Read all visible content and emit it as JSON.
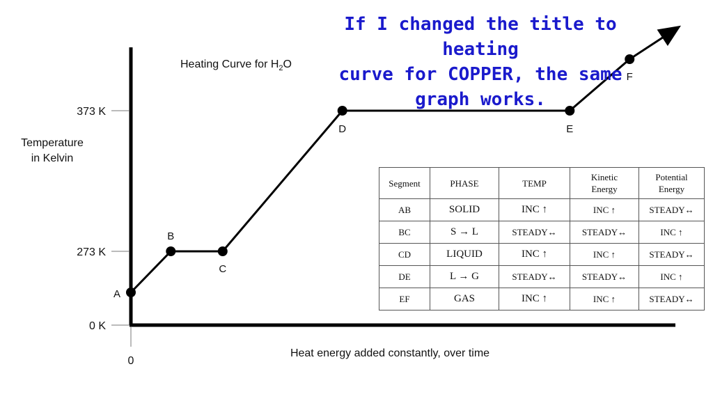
{
  "callout": {
    "lines": [
      "If I changed the title to heating",
      "curve for COPPER, the same",
      "graph works."
    ]
  },
  "chart_data": {
    "type": "line",
    "title_main": "Heating Curve for H",
    "title_sub": "2",
    "title_tail": "O",
    "ylabel_lines": [
      "Temperature",
      "in Kelvin"
    ],
    "xlabel": "Heat energy added constantly, over time",
    "y_ticks": [
      {
        "label": "373 K",
        "value": 373
      },
      {
        "label": "273 K",
        "value": 273
      },
      {
        "label": "0 K",
        "value": 0
      }
    ],
    "x_ticks": [
      {
        "label": "0",
        "value": 0
      }
    ],
    "points": [
      {
        "label": "A",
        "x": 0,
        "y": 190
      },
      {
        "label": "B",
        "x": 1,
        "y": 273
      },
      {
        "label": "C",
        "x": 2.3,
        "y": 273
      },
      {
        "label": "D",
        "x": 5.3,
        "y": 373
      },
      {
        "label": "E",
        "x": 11,
        "y": 373
      },
      {
        "label": "F",
        "x": 12.5,
        "y": 480
      }
    ],
    "arrow_to": {
      "x": 13.7,
      "y": 620
    },
    "ylim": [
      0,
      620
    ],
    "xlim": [
      0,
      13.7
    ]
  },
  "table": {
    "headers": [
      [
        "Segment"
      ],
      [
        "PHASE"
      ],
      [
        "TEMP"
      ],
      [
        "Kinetic",
        "Energy"
      ],
      [
        "Potential",
        "Energy"
      ]
    ],
    "rows": [
      [
        "AB",
        "SOLID",
        "INC ↑",
        "INC ↑",
        "STEADY↔"
      ],
      [
        "BC",
        "S → L",
        "STEADY↔",
        "STEADY↔",
        "INC ↑"
      ],
      [
        "CD",
        "LIQUID",
        "INC ↑",
        "INC ↑",
        "STEADY↔"
      ],
      [
        "DE",
        "L → G",
        "STEADY↔",
        "STEADY↔",
        "INC ↑"
      ],
      [
        "EF",
        "GAS",
        "INC ↑",
        "INC ↑",
        "STEADY↔"
      ]
    ]
  }
}
